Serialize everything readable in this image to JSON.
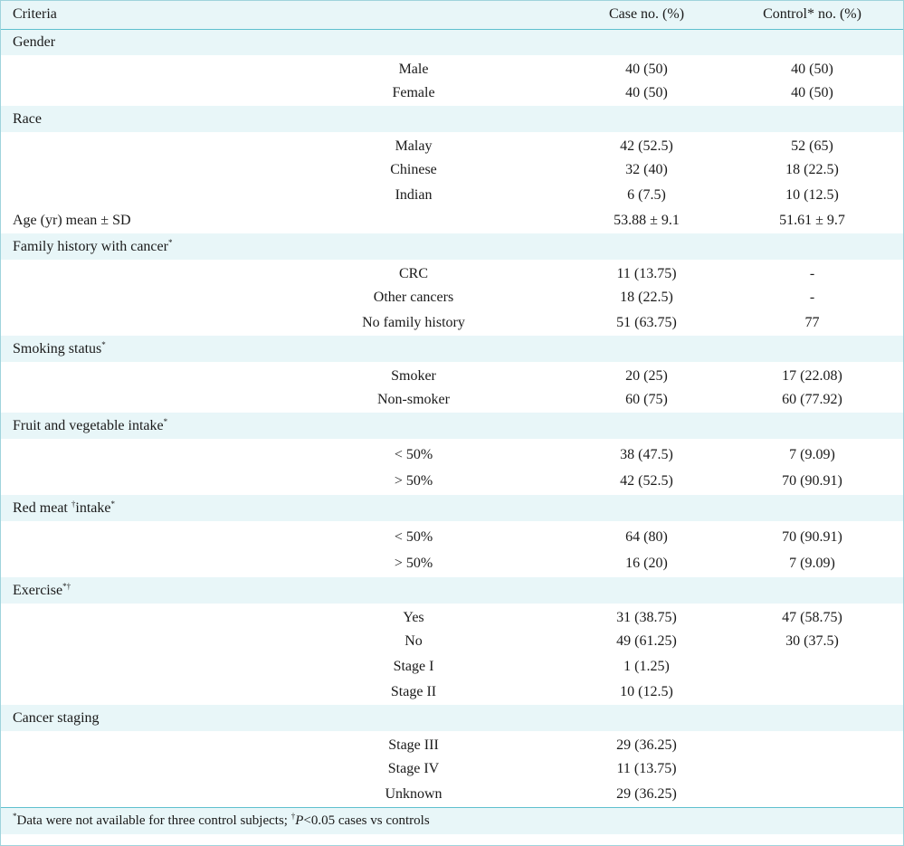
{
  "header": {
    "criteria": "Criteria",
    "case": "Case no. (%)",
    "control": "Control* no. (%)"
  },
  "gender": {
    "label": "Gender",
    "rows": [
      {
        "label": "Male",
        "case": "40 (50)",
        "control": "40 (50)"
      },
      {
        "label": "Female",
        "case": "40 (50)",
        "control": "40 (50)"
      }
    ]
  },
  "race": {
    "label": "Race",
    "rows": [
      {
        "label": "Malay",
        "case": "42 (52.5)",
        "control": "52 (65)"
      },
      {
        "label": "Chinese",
        "case": "32 (40)",
        "control": "18 (22.5)"
      },
      {
        "label": "Indian",
        "case": "6 (7.5)",
        "control": "10 (12.5)"
      }
    ]
  },
  "age": {
    "label": "Age (yr) mean ± SD",
    "case": "53.88 ± 9.1",
    "control": "51.61 ± 9.7"
  },
  "family_history": {
    "label": "Family history with cancer",
    "mark": "*",
    "rows": [
      {
        "label": "CRC",
        "case": "11 (13.75)",
        "control": "-"
      },
      {
        "label": "Other cancers",
        "case": "18 (22.5)",
        "control": "-"
      },
      {
        "label": "No family history",
        "case": "51 (63.75)",
        "control": "77"
      }
    ]
  },
  "smoking": {
    "label": "Smoking status",
    "mark": "*",
    "rows": [
      {
        "label": "Smoker",
        "case": "20 (25)",
        "control": "17 (22.08)"
      },
      {
        "label": "Non-smoker",
        "case": "60 (75)",
        "control": "60 (77.92)"
      }
    ]
  },
  "fruit": {
    "label": "Fruit and vegetable intake",
    "mark": "*",
    "rows": [
      {
        "label": "< 50%",
        "case": "38 (47.5)",
        "control": "7 (9.09)"
      },
      {
        "label": "> 50%",
        "case": "42 (52.5)",
        "control": "70 (90.91)"
      }
    ]
  },
  "red_meat": {
    "label_a": "Red meat ",
    "mark_a": "†",
    "label_b": "intake",
    "mark_b": "*",
    "rows": [
      {
        "label": "< 50%",
        "case": "64 (80)",
        "control": "70 (90.91)"
      },
      {
        "label": "> 50%",
        "case": "16 (20)",
        "control": "7 (9.09)"
      }
    ]
  },
  "exercise": {
    "label": "Exercise",
    "mark": "*†",
    "rows": [
      {
        "label": "Yes",
        "case": "31 (38.75)",
        "control": "47 (58.75)"
      },
      {
        "label": "No",
        "case": "49 (61.25)",
        "control": "30 (37.5)"
      },
      {
        "label": "Stage I",
        "case": "1 (1.25)",
        "control": ""
      },
      {
        "label": "Stage II",
        "case": "10 (12.5)",
        "control": ""
      }
    ]
  },
  "staging": {
    "label": "Cancer staging",
    "rows": [
      {
        "label": "Stage III",
        "case": "29 (36.25)",
        "control": ""
      },
      {
        "label": "Stage IV",
        "case": "11 (13.75)",
        "control": ""
      },
      {
        "label": "Unknown",
        "case": "29 (36.25)",
        "control": ""
      }
    ]
  },
  "footnote": {
    "mark1": "*",
    "text1": "Data were not available for three control subjects; ",
    "mark2": "†",
    "p": "P",
    "text2": "<0.05 cases vs controls"
  }
}
